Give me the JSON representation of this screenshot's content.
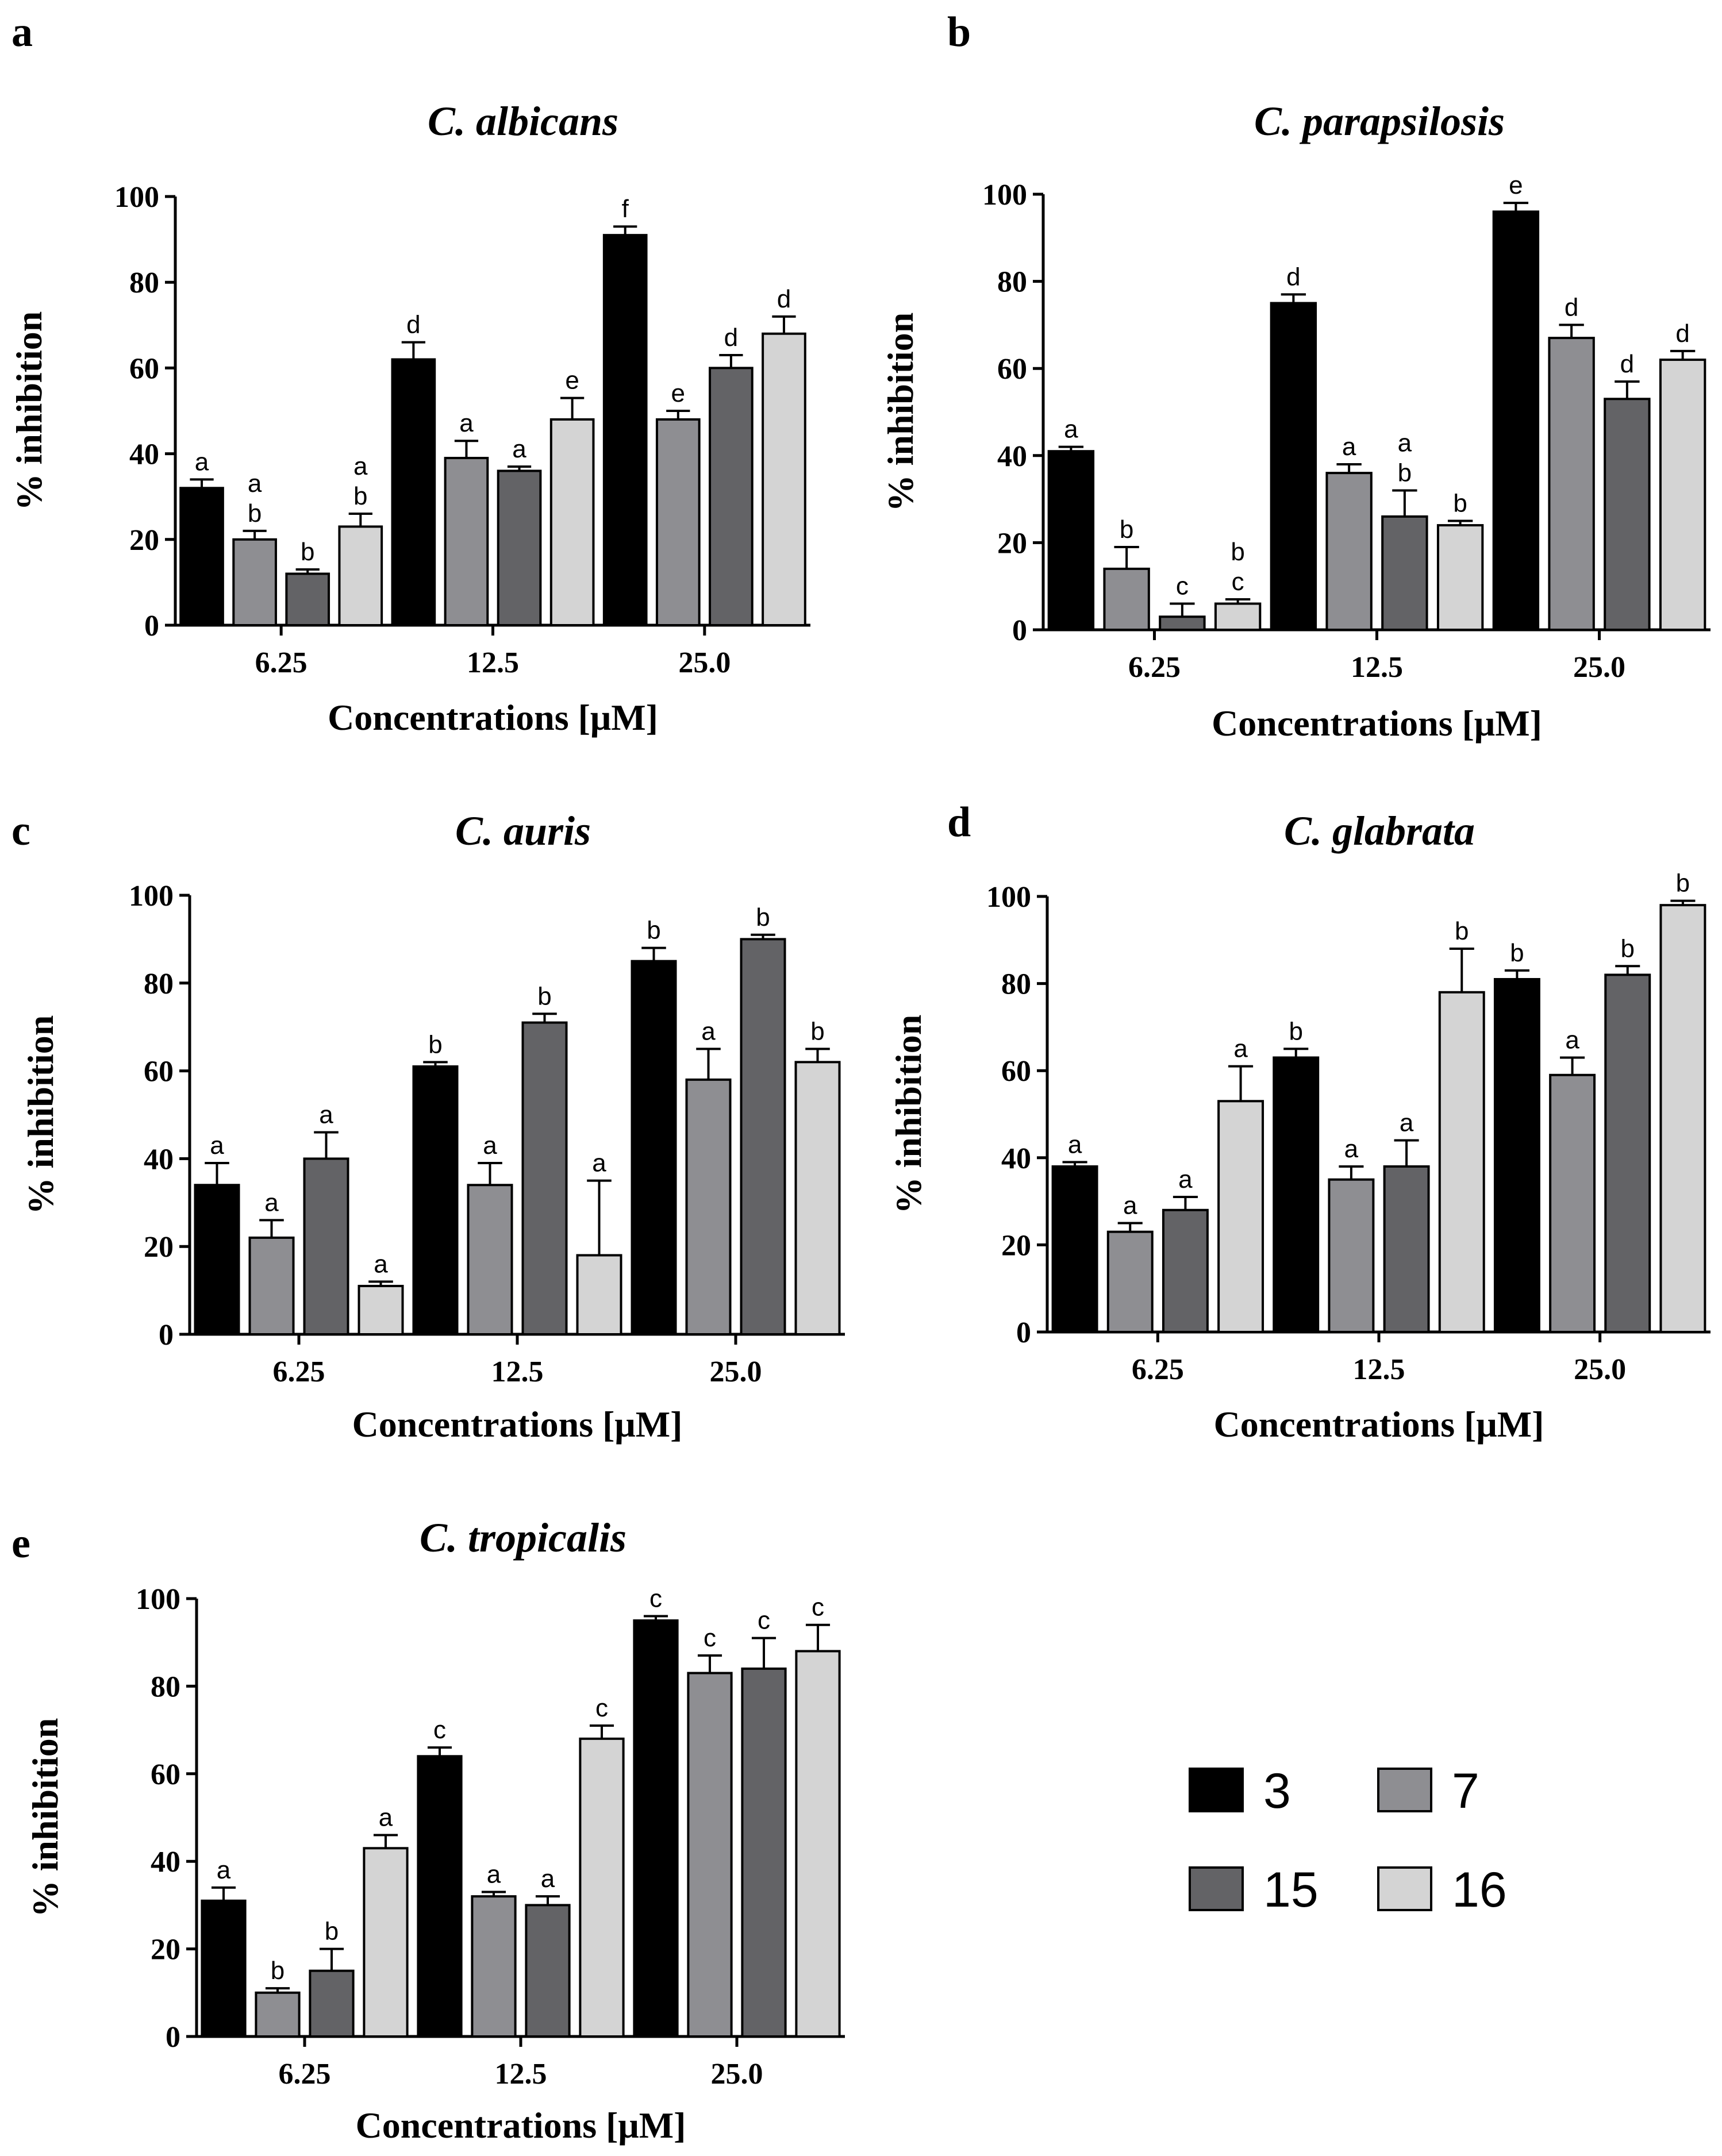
{
  "colors": {
    "3": "#000000",
    "7": "#8e8e92",
    "15": "#636366",
    "16": "#d4d4d4"
  },
  "legend": [
    "3",
    "7",
    "15",
    "16"
  ],
  "chart_data": [
    {
      "panel": "a",
      "type": "bar",
      "title": "C. albicans",
      "xlabel": "Concentrations [μM]",
      "ylabel": "% inhibition",
      "ylim": [
        0,
        100
      ],
      "yticks": [
        "0",
        "20",
        "40",
        "60",
        "80",
        "100"
      ],
      "categories": [
        "6.25",
        "12.5",
        "25.0"
      ],
      "series": [
        {
          "name": "3",
          "values": [
            32,
            62,
            91
          ],
          "errors": [
            2,
            4,
            2
          ],
          "letters": [
            [
              "a"
            ],
            [
              "d"
            ],
            [
              "f"
            ]
          ]
        },
        {
          "name": "7",
          "values": [
            20,
            39,
            48
          ],
          "errors": [
            2,
            4,
            2
          ],
          "letters": [
            [
              "a",
              "b"
            ],
            [
              "a"
            ],
            [
              "e"
            ]
          ]
        },
        {
          "name": "15",
          "values": [
            12,
            36,
            60
          ],
          "errors": [
            1,
            1,
            3
          ],
          "letters": [
            [
              "b"
            ],
            [
              "a"
            ],
            [
              "d"
            ]
          ]
        },
        {
          "name": "16",
          "values": [
            23,
            48,
            68
          ],
          "errors": [
            3,
            5,
            4
          ],
          "letters": [
            [
              "a",
              "b"
            ],
            [
              "e"
            ],
            [
              "d"
            ]
          ]
        }
      ]
    },
    {
      "panel": "b",
      "type": "bar",
      "title": "C. parapsilosis",
      "xlabel": "Concentrations [μM]",
      "ylabel": "% inhibition",
      "ylim": [
        0,
        100
      ],
      "yticks": [
        "0",
        "20",
        "40",
        "60",
        "80",
        "100"
      ],
      "categories": [
        "6.25",
        "12.5",
        "25.0"
      ],
      "series": [
        {
          "name": "3",
          "values": [
            41,
            75,
            96
          ],
          "errors": [
            1,
            2,
            2
          ],
          "letters": [
            [
              "a"
            ],
            [
              "d"
            ],
            [
              "e"
            ]
          ]
        },
        {
          "name": "7",
          "values": [
            14,
            36,
            67
          ],
          "errors": [
            5,
            2,
            3
          ],
          "letters": [
            [
              "b"
            ],
            [
              "a"
            ],
            [
              "d"
            ]
          ]
        },
        {
          "name": "15",
          "values": [
            3,
            26,
            53
          ],
          "errors": [
            3,
            6,
            4
          ],
          "letters": [
            [
              "c"
            ],
            [
              "a",
              "b"
            ],
            [
              "d"
            ]
          ]
        },
        {
          "name": "16",
          "values": [
            6,
            24,
            62
          ],
          "errors": [
            1,
            1,
            2
          ],
          "letters": [
            [
              "b",
              "c"
            ],
            [
              "b"
            ],
            [
              "d"
            ]
          ]
        }
      ]
    },
    {
      "panel": "c",
      "type": "bar",
      "title": "C. auris",
      "xlabel": "Concentrations [μM]",
      "ylabel": "% inhibition",
      "ylim": [
        0,
        100
      ],
      "yticks": [
        "0",
        "20",
        "40",
        "60",
        "80",
        "100"
      ],
      "categories": [
        "6.25",
        "12.5",
        "25.0"
      ],
      "series": [
        {
          "name": "3",
          "values": [
            34,
            61,
            85
          ],
          "errors": [
            5,
            1,
            3
          ],
          "letters": [
            [
              "a"
            ],
            [
              "b"
            ],
            [
              "b"
            ]
          ]
        },
        {
          "name": "7",
          "values": [
            22,
            34,
            58
          ],
          "errors": [
            4,
            5,
            7
          ],
          "letters": [
            [
              "a"
            ],
            [
              "a"
            ],
            [
              "a"
            ]
          ]
        },
        {
          "name": "15",
          "values": [
            40,
            71,
            90
          ],
          "errors": [
            6,
            2,
            1
          ],
          "letters": [
            [
              "a"
            ],
            [
              "b"
            ],
            [
              "b"
            ]
          ]
        },
        {
          "name": "16",
          "values": [
            11,
            18,
            62
          ],
          "errors": [
            1,
            17,
            3
          ],
          "letters": [
            [
              "a"
            ],
            [
              "a"
            ],
            [
              "b"
            ]
          ]
        }
      ]
    },
    {
      "panel": "d",
      "type": "bar",
      "title": "C. glabrata",
      "xlabel": "Concentrations [μM]",
      "ylabel": "% inhibition",
      "ylim": [
        0,
        100
      ],
      "yticks": [
        "0",
        "20",
        "40",
        "60",
        "80",
        "100"
      ],
      "categories": [
        "6.25",
        "12.5",
        "25.0"
      ],
      "series": [
        {
          "name": "3",
          "values": [
            38,
            63,
            81
          ],
          "errors": [
            1,
            2,
            2
          ],
          "letters": [
            [
              "a"
            ],
            [
              "b"
            ],
            [
              "b"
            ]
          ]
        },
        {
          "name": "7",
          "values": [
            23,
            35,
            59
          ],
          "errors": [
            2,
            3,
            4
          ],
          "letters": [
            [
              "a"
            ],
            [
              "a"
            ],
            [
              "a"
            ]
          ]
        },
        {
          "name": "15",
          "values": [
            28,
            38,
            82
          ],
          "errors": [
            3,
            6,
            2
          ],
          "letters": [
            [
              "a"
            ],
            [
              "a"
            ],
            [
              "b"
            ]
          ]
        },
        {
          "name": "16",
          "values": [
            53,
            78,
            98
          ],
          "errors": [
            8,
            10,
            1
          ],
          "letters": [
            [
              "a"
            ],
            [
              "b"
            ],
            [
              "b"
            ]
          ]
        }
      ]
    },
    {
      "panel": "e",
      "type": "bar",
      "title": "C. tropicalis",
      "xlabel": "Concentrations [μM]",
      "ylabel": "% inhibition",
      "ylim": [
        0,
        100
      ],
      "yticks": [
        "0",
        "20",
        "40",
        "60",
        "80",
        "100"
      ],
      "categories": [
        "6.25",
        "12.5",
        "25.0"
      ],
      "series": [
        {
          "name": "3",
          "values": [
            31,
            64,
            95
          ],
          "errors": [
            3,
            2,
            1
          ],
          "letters": [
            [
              "a"
            ],
            [
              "c"
            ],
            [
              "c"
            ]
          ]
        },
        {
          "name": "7",
          "values": [
            10,
            32,
            83
          ],
          "errors": [
            1,
            1,
            4
          ],
          "letters": [
            [
              "b"
            ],
            [
              "a"
            ],
            [
              "c"
            ]
          ]
        },
        {
          "name": "15",
          "values": [
            15,
            30,
            84
          ],
          "errors": [
            5,
            2,
            7
          ],
          "letters": [
            [
              "b"
            ],
            [
              "a"
            ],
            [
              "c"
            ]
          ]
        },
        {
          "name": "16",
          "values": [
            43,
            68,
            88
          ],
          "errors": [
            3,
            3,
            6
          ],
          "letters": [
            [
              "a"
            ],
            [
              "c"
            ],
            [
              "c"
            ]
          ]
        }
      ]
    }
  ]
}
